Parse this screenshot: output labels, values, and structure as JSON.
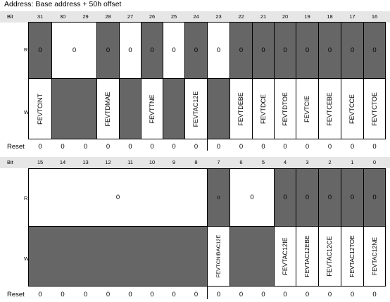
{
  "title": "Address: Base address + 50h offset",
  "labels": {
    "bit": "Bit",
    "r": "R",
    "w": "W",
    "reset": "Reset"
  },
  "top": {
    "bits": [
      "31",
      "30",
      "29",
      "28",
      "27",
      "26",
      "25",
      "24",
      "23",
      "22",
      "21",
      "20",
      "19",
      "18",
      "17",
      "16"
    ],
    "r_values": [
      "0",
      "0",
      "0",
      "0",
      "0",
      "0",
      "0",
      "0",
      "0",
      "0",
      "0",
      "0",
      "0",
      "0",
      "0"
    ],
    "w_fields": [
      "FEVTCINT",
      "FEVTDMAE",
      "FEVTTNE",
      "FEVTAC12E",
      "FEVTDEBE",
      "FEVTDCE",
      "FEVTDTOE",
      "FEVTCIE",
      "FEVTCEBE",
      "FEVTCCE",
      "FEVTCTOE"
    ],
    "reset": [
      "0",
      "0",
      "0",
      "0",
      "0",
      "0",
      "0",
      "0",
      "0",
      "0",
      "0",
      "0",
      "0",
      "0",
      "0",
      "0"
    ]
  },
  "bottom": {
    "bits": [
      "15",
      "14",
      "13",
      "12",
      "11",
      "10",
      "9",
      "8",
      "7",
      "6",
      "5",
      "4",
      "3",
      "2",
      "1",
      "0"
    ],
    "r_values": [
      "0",
      "0",
      "0",
      "0",
      "0",
      "0",
      "0",
      "0"
    ],
    "w_fields": [
      "FEVTCNIBAC12E",
      "FEVTAC12IE",
      "FEVTAC12EBE",
      "FEVTAC12CE",
      "FEVTAC12TOE",
      "FEVTAC12NE"
    ],
    "reset": [
      "0",
      "0",
      "0",
      "0",
      "0",
      "0",
      "0",
      "0",
      "0",
      "0",
      "0",
      "0",
      "0",
      "0",
      "0",
      "0"
    ]
  }
}
